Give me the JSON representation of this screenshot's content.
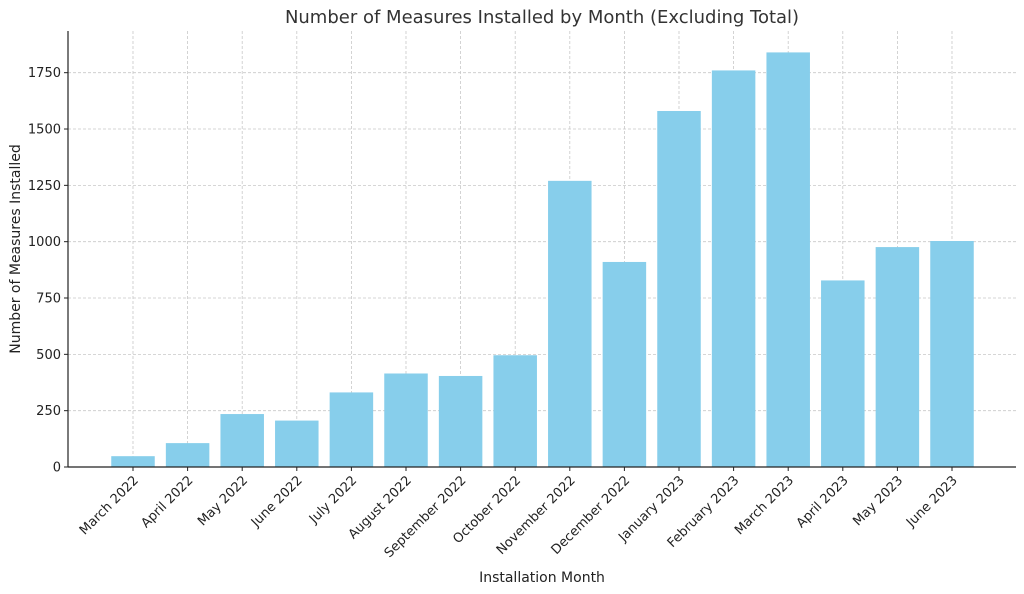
{
  "chart_data": {
    "type": "bar",
    "title": "Number of Measures Installed by Month (Excluding Total)",
    "xlabel": "Installation Month",
    "ylabel": "Number of Measures Installed",
    "categories": [
      "March 2022",
      "April 2022",
      "May 2022",
      "June 2022",
      "July 2022",
      "August 2022",
      "September 2022",
      "October 2022",
      "November 2022",
      "December 2022",
      "January 2023",
      "February 2023",
      "March 2023",
      "April 2023",
      "May 2023",
      "June 2023"
    ],
    "values": [
      48,
      106,
      235,
      206,
      331,
      415,
      404,
      496,
      1270,
      910,
      1580,
      1760,
      1840,
      828,
      976,
      1003
    ],
    "ylim": [
      0,
      1935
    ],
    "yticks": [
      0,
      250,
      500,
      750,
      1000,
      1250,
      1500,
      1750
    ],
    "bar_color": "#87ceeb",
    "grid": true,
    "legend": "none"
  }
}
